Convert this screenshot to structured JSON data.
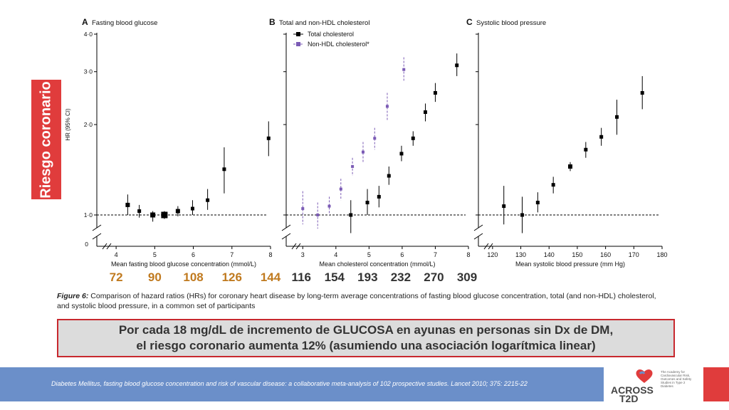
{
  "side_label": "Riesgo coronario",
  "y_axis_title": "HR (95% CI)",
  "y_ticks": [
    "4·0",
    "3·0",
    "2·0",
    "1·0",
    "0"
  ],
  "chart_data": [
    {
      "type": "scatter",
      "panel_letter": "A",
      "title": "Fasting blood glucose",
      "xlabel": "Mean fasting blood glucose concentration (mmol/L)",
      "ylabel": "HR (95% CI)",
      "x_ticks": [
        4,
        5,
        6,
        7,
        8
      ],
      "xlim": [
        3.5,
        8
      ],
      "ylim": [
        0.9,
        4
      ],
      "y_scale": "log",
      "y_ticks": [
        1,
        2,
        3,
        4
      ],
      "series": [
        {
          "points": [
            {
              "x": 4.3,
              "y": 1.08,
              "lo": 1.0,
              "hi": 1.17
            },
            {
              "x": 4.6,
              "y": 1.03,
              "lo": 0.98,
              "hi": 1.08
            },
            {
              "x": 4.95,
              "y": 1.0,
              "lo": 0.95,
              "hi": 1.03
            },
            {
              "x": 5.25,
              "y": 1.0,
              "lo": 0.97,
              "hi": 1.03
            },
            {
              "x": 5.6,
              "y": 1.03,
              "lo": 0.99,
              "hi": 1.07
            },
            {
              "x": 5.98,
              "y": 1.05,
              "lo": 1.0,
              "hi": 1.12
            },
            {
              "x": 6.37,
              "y": 1.12,
              "lo": 1.04,
              "hi": 1.22
            },
            {
              "x": 6.8,
              "y": 1.42,
              "lo": 1.18,
              "hi": 1.68
            },
            {
              "x": 7.95,
              "y": 1.8,
              "lo": 1.57,
              "hi": 2.05
            }
          ]
        }
      ]
    },
    {
      "type": "scatter",
      "panel_letter": "B",
      "title": "Total and non-HDL cholesterol",
      "xlabel": "Mean cholesterol concentration (mmol/L)",
      "ylabel": "HR (95% CI)",
      "x_ticks": [
        3,
        4,
        5,
        6,
        7,
        8
      ],
      "xlim": [
        2.5,
        8
      ],
      "ylim": [
        0.9,
        4
      ],
      "y_scale": "log",
      "y_ticks": [
        1,
        2,
        3,
        4
      ],
      "legend": "top-left",
      "series": [
        {
          "name": "Total cholesterol",
          "color": "#000000",
          "points": [
            {
              "x": 4.45,
              "y": 1.0,
              "lo": 0.87,
              "hi": 1.12
            },
            {
              "x": 4.95,
              "y": 1.1,
              "lo": 1.0,
              "hi": 1.22
            },
            {
              "x": 5.3,
              "y": 1.15,
              "lo": 1.06,
              "hi": 1.25
            },
            {
              "x": 5.6,
              "y": 1.35,
              "lo": 1.26,
              "hi": 1.45
            },
            {
              "x": 5.98,
              "y": 1.6,
              "lo": 1.51,
              "hi": 1.7
            },
            {
              "x": 6.33,
              "y": 1.8,
              "lo": 1.7,
              "hi": 1.9
            },
            {
              "x": 6.7,
              "y": 2.2,
              "lo": 2.05,
              "hi": 2.35
            },
            {
              "x": 7.0,
              "y": 2.55,
              "lo": 2.38,
              "hi": 2.75
            },
            {
              "x": 7.65,
              "y": 3.15,
              "lo": 2.9,
              "hi": 3.45
            }
          ]
        },
        {
          "name": "Non-HDL cholesterol*",
          "color": "#7b5bb5",
          "points": [
            {
              "x": 3.0,
              "y": 1.05,
              "lo": 0.93,
              "hi": 1.2
            },
            {
              "x": 3.45,
              "y": 1.0,
              "lo": 0.9,
              "hi": 1.1
            },
            {
              "x": 3.8,
              "y": 1.07,
              "lo": 1.0,
              "hi": 1.15
            },
            {
              "x": 4.15,
              "y": 1.22,
              "lo": 1.12,
              "hi": 1.32
            },
            {
              "x": 4.5,
              "y": 1.45,
              "lo": 1.35,
              "hi": 1.55
            },
            {
              "x": 4.82,
              "y": 1.62,
              "lo": 1.5,
              "hi": 1.75
            },
            {
              "x": 5.17,
              "y": 1.8,
              "lo": 1.65,
              "hi": 1.95
            },
            {
              "x": 5.55,
              "y": 2.3,
              "lo": 2.05,
              "hi": 2.55
            },
            {
              "x": 6.05,
              "y": 3.05,
              "lo": 2.8,
              "hi": 3.35
            }
          ]
        }
      ]
    },
    {
      "type": "scatter",
      "panel_letter": "C",
      "title": "Systolic blood pressure",
      "xlabel": "Mean systolic blood pressure (mm Hg)",
      "ylabel": "HR (95% CI)",
      "x_ticks": [
        120,
        130,
        140,
        150,
        160,
        170,
        180
      ],
      "xlim": [
        115,
        180
      ],
      "ylim": [
        0.9,
        4
      ],
      "y_scale": "log",
      "y_ticks": [
        1,
        2,
        3,
        4
      ],
      "series": [
        {
          "points": [
            {
              "x": 124,
              "y": 1.07,
              "lo": 0.93,
              "hi": 1.25
            },
            {
              "x": 130.5,
              "y": 1.0,
              "lo": 0.87,
              "hi": 1.15
            },
            {
              "x": 136,
              "y": 1.1,
              "lo": 1.02,
              "hi": 1.19
            },
            {
              "x": 141.5,
              "y": 1.26,
              "lo": 1.18,
              "hi": 1.34
            },
            {
              "x": 147.5,
              "y": 1.45,
              "lo": 1.4,
              "hi": 1.5
            },
            {
              "x": 153,
              "y": 1.65,
              "lo": 1.55,
              "hi": 1.75
            },
            {
              "x": 158.5,
              "y": 1.82,
              "lo": 1.7,
              "hi": 1.95
            },
            {
              "x": 164,
              "y": 2.12,
              "lo": 1.85,
              "hi": 2.42
            },
            {
              "x": 173,
              "y": 2.55,
              "lo": 2.25,
              "hi": 2.9
            }
          ]
        }
      ]
    }
  ],
  "glucose_mgdl_labels": [
    "72",
    "90",
    "108",
    "126",
    "144"
  ],
  "cholesterol_mgdl_labels": [
    "116",
    "154",
    "193",
    "232",
    "270",
    "309"
  ],
  "caption": {
    "label": "Figure 6:",
    "text": "Comparison of hazard ratios (HRs) for coronary heart disease by long-term average concentrations of fasting blood glucose concentration, total (and non-HDL) cholesterol, and systolic blood pressure, in a common set of participants"
  },
  "callout": {
    "line1": "Por cada 18 mg/dL de incremento de GLUCOSA en ayunas en personas sin Dx de DM,",
    "line2": "el riesgo coronario aumenta 12% (asumiendo una asociación logarítmica linear)"
  },
  "footer": {
    "citation": "Diabetes Mellitus, fasting blood glucose concentration and risk of vascular disease: a collaborative meta-analysis of 102 prospective studies. Lancet 2010; 375: 2215-22"
  },
  "logo": {
    "line1": "ACROSS",
    "line2": "T2D",
    "tagline": "The Academy for Cardiovascular Risk, Outcomes and Safety Studies in Type 2 Diabetes"
  },
  "colors": {
    "accent_red": "#e03c3c",
    "footer_blue": "#6b8fc9",
    "glucose_orange": "#c07a1f",
    "nonhdl_purple": "#7b5bb5"
  }
}
